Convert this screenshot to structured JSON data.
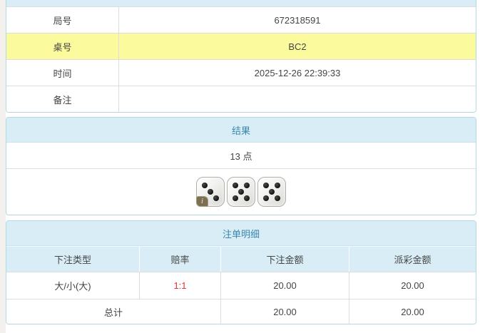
{
  "info_table": {
    "rows": [
      {
        "label": "局号",
        "value": "672318591",
        "highlight": false
      },
      {
        "label": "桌号",
        "value": "BC2",
        "highlight": true
      },
      {
        "label": "时间",
        "value": "2025-12-26 22:39:33",
        "highlight": false
      },
      {
        "label": "备注",
        "value": "",
        "highlight": false
      }
    ]
  },
  "result_section": {
    "title": "结果",
    "points_text": "13 点",
    "dice": [
      3,
      5,
      5
    ],
    "info_badge": "i"
  },
  "bets_section": {
    "title": "注单明细",
    "columns": [
      "下注类型",
      "赔率",
      "下注金额",
      "派彩金额"
    ],
    "rows": [
      {
        "bet_type": "大/小(大)",
        "odds": "1:1",
        "bet_amount": "20.00",
        "payout": "20.00"
      }
    ],
    "total": {
      "label": "总计",
      "bet_amount": "20.00",
      "payout": "20.00"
    }
  },
  "colors": {
    "header_bg": "#d9edf7",
    "header_text": "#3a87ad",
    "highlight_row_bg": "#fbfb9e",
    "odds_text": "#e53333",
    "panel_border": "#b3d9e6",
    "row_divider": "#dddddd"
  }
}
